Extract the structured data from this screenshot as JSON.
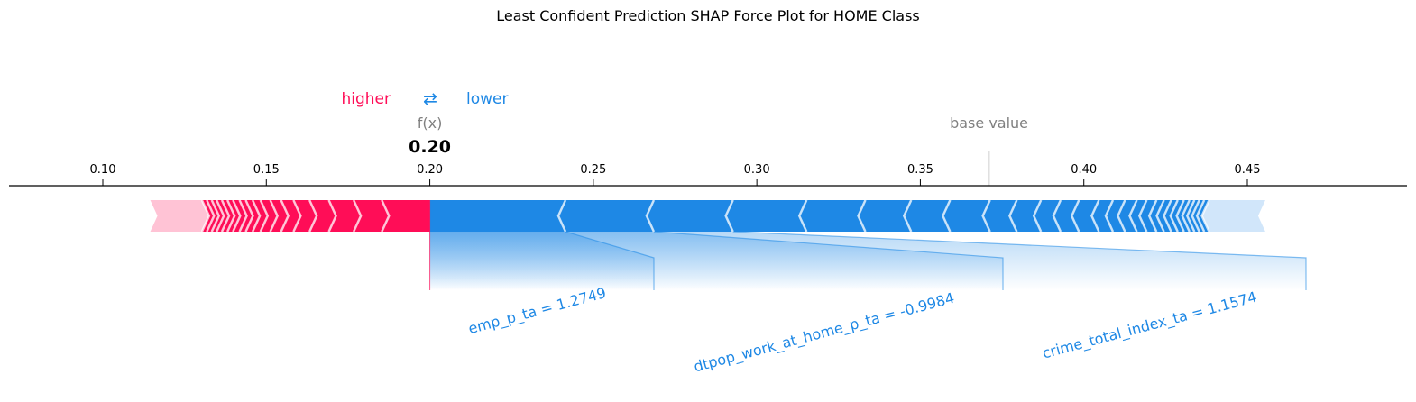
{
  "chart_data": {
    "type": "force_plot",
    "title": "Least Confident Prediction SHAP Force Plot for HOME Class",
    "legend": {
      "higher": "higher",
      "arrows": "⇄",
      "lower": "lower"
    },
    "fx_label": "f(x)",
    "output_value": 0.2,
    "output_value_text": "0.20",
    "base_value_label": "base value",
    "base_value": 0.371,
    "xlim": [
      0.081,
      0.508
    ],
    "ticks": [
      0.1,
      0.15,
      0.2,
      0.25,
      0.3,
      0.35,
      0.4,
      0.45
    ],
    "tick_labels": [
      "0.10",
      "0.15",
      "0.20",
      "0.25",
      "0.30",
      "0.35",
      "0.40",
      "0.45"
    ],
    "positive_segments_low_to_high": [
      0.1145,
      0.1303,
      0.1318,
      0.1333,
      0.1348,
      0.1364,
      0.1381,
      0.1398,
      0.1418,
      0.1437,
      0.1458,
      0.1482,
      0.1512,
      0.1545,
      0.1583,
      0.1632,
      0.1691,
      0.1767,
      0.1853,
      0.2
    ],
    "negative_segments_high_to_low": [
      0.4555,
      0.4383,
      0.4368,
      0.4353,
      0.4338,
      0.4323,
      0.4306,
      0.4287,
      0.4267,
      0.4245,
      0.4222,
      0.4192,
      0.4162,
      0.4126,
      0.4089,
      0.4046,
      0.3985,
      0.3929,
      0.3869,
      0.3795,
      0.3713,
      0.3591,
      0.3472,
      0.3332,
      0.3152,
      0.2927,
      0.2685,
      0.2415,
      0.2
    ],
    "features": [
      {
        "label": "emp_p_ta = 1.2749",
        "start": 0.2415,
        "end": 0.2
      },
      {
        "label": "dtpop_work_at_home_p_ta = -0.9984",
        "start": 0.2685,
        "end": 0.2415
      },
      {
        "label": "crime_total_index_ta = 1.1574",
        "start": 0.2927,
        "end": 0.2685
      }
    ],
    "colors": {
      "positive": "#ff0d57",
      "positive_faded": "#ffc3d5",
      "negative": "#1e88e5",
      "negative_faded": "#d1e6fa",
      "label_gray": "#808080"
    }
  }
}
